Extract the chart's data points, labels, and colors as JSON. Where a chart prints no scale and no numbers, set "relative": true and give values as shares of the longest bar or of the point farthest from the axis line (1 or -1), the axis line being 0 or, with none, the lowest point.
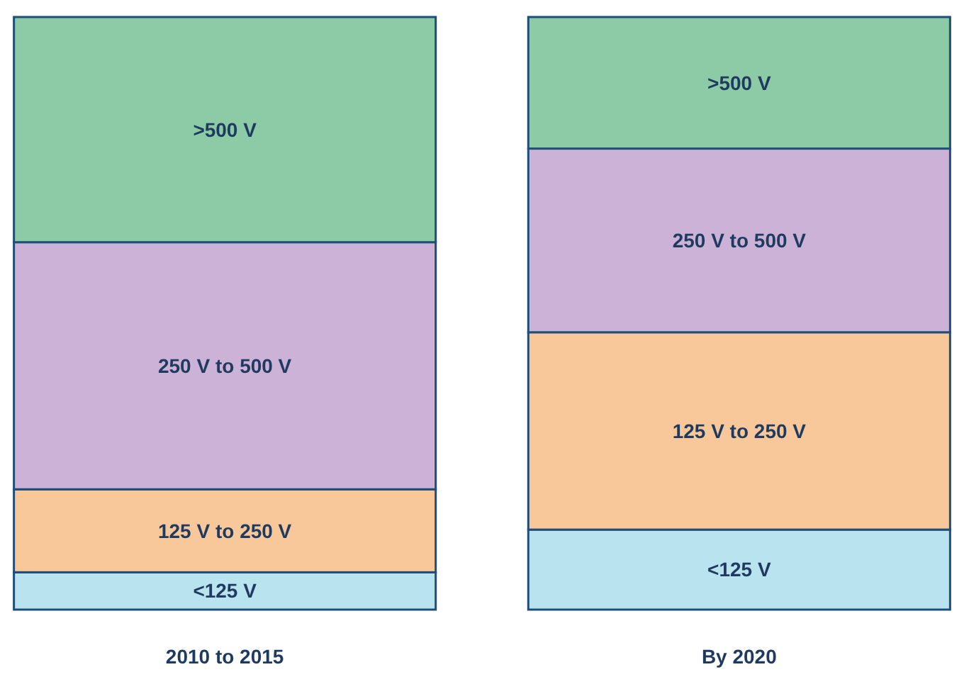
{
  "chart_data": {
    "type": "bar",
    "relative": true,
    "stacked": true,
    "categories": [
      "2010 to 2015",
      "By 2020"
    ],
    "series": [
      {
        "name": "<125 V",
        "color": "#b9e3ee",
        "values": [
          0.063,
          0.135
        ]
      },
      {
        "name": "125 V to 250 V",
        "color": "#f8c89a",
        "values": [
          0.14,
          0.333
        ]
      },
      {
        "name": "250 V to 500 V",
        "color": "#cbb2d6",
        "values": [
          0.417,
          0.31
        ]
      },
      {
        "name": ">500 V",
        "color": "#8ccba6",
        "values": [
          0.38,
          0.222
        ]
      }
    ]
  }
}
